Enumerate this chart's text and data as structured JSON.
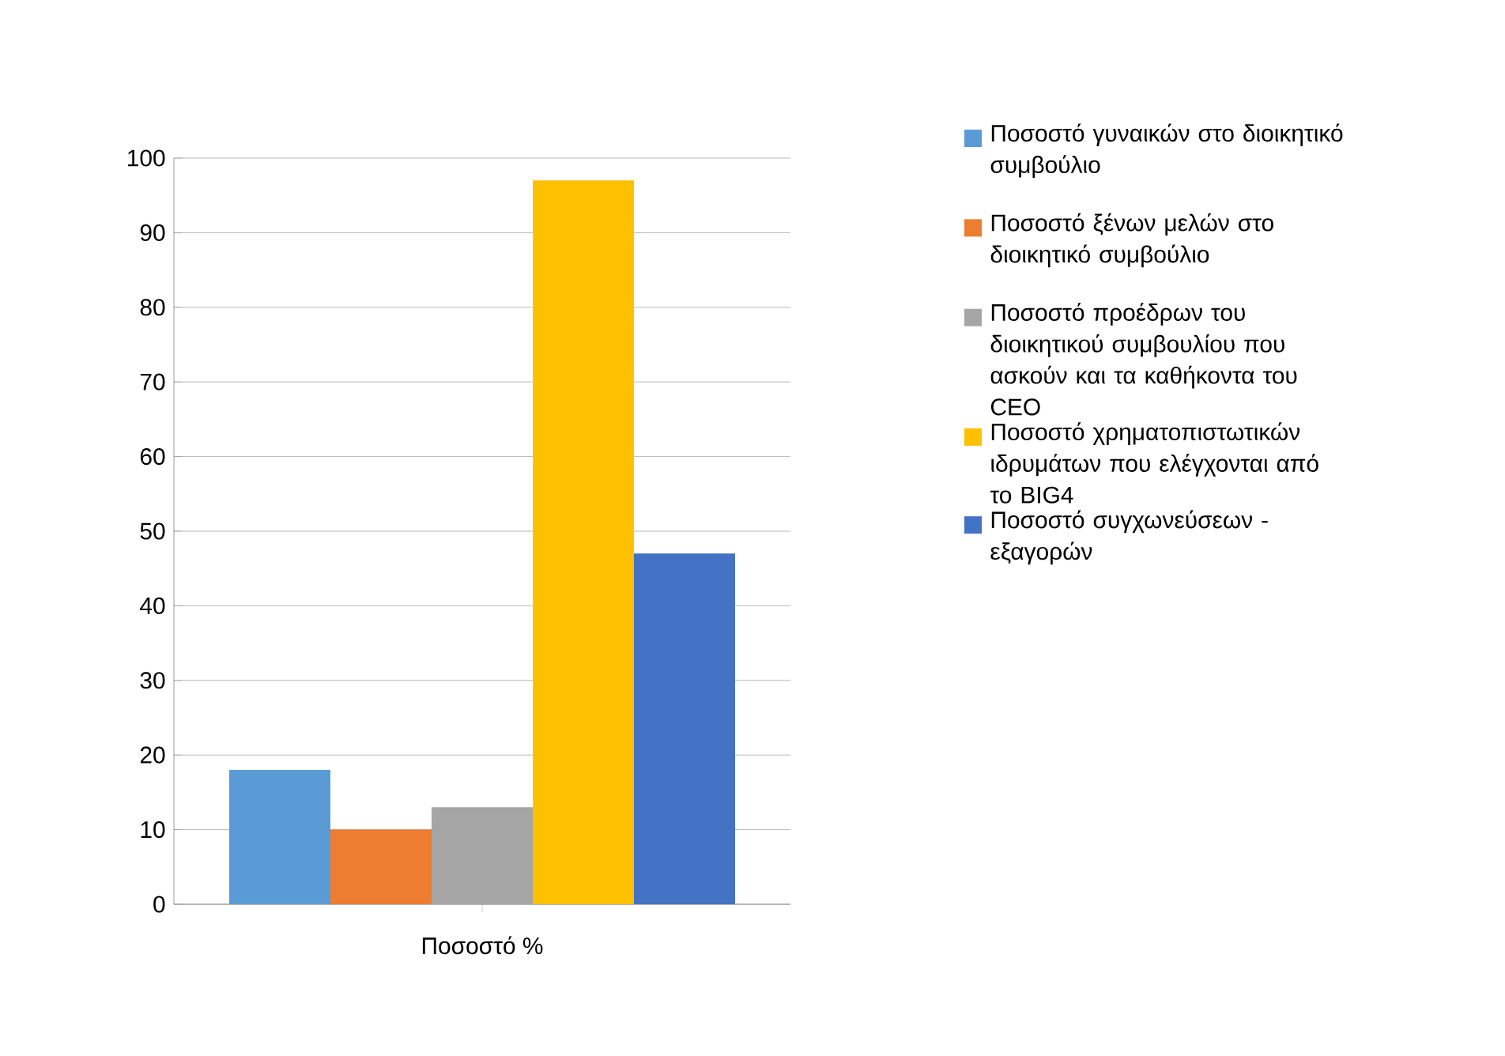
{
  "chart_data": {
    "type": "bar",
    "categories": [
      "Ποσοστό %"
    ],
    "series": [
      {
        "name": "Ποσοστό γυναικών στο διοικητικό συμβούλιο",
        "color": "#5b9bd5",
        "values": [
          18
        ]
      },
      {
        "name": "Ποσοστό ξένων μελών στο διοικητικό συμβούλιο",
        "color": "#ed7d31",
        "values": [
          10
        ]
      },
      {
        "name": "Ποσοστό προέδρων του διοικητικού συμβουλίου που ασκούν και τα καθήκοντα του CEO",
        "color": "#a5a5a5",
        "values": [
          13
        ]
      },
      {
        "name": "Ποσοστό χρηματοπιστωτικών ιδρυμάτων που ελέγχονται από το BIG4",
        "color": "#ffc000",
        "values": [
          97
        ]
      },
      {
        "name": "Ποσοστό συγχωνεύσεων - εξαγορών",
        "color": "#4472c4",
        "values": [
          47
        ]
      }
    ],
    "ylim": [
      0,
      100
    ],
    "yticks": [
      0,
      10,
      20,
      30,
      40,
      50,
      60,
      70,
      80,
      90,
      100
    ],
    "grid": "y",
    "legend": "right"
  }
}
